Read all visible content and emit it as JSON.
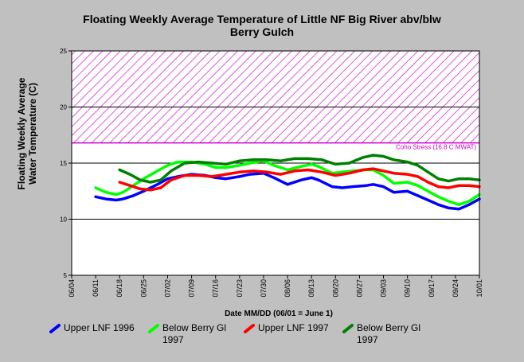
{
  "chart_data": {
    "type": "line",
    "title_line1": "Floating Weekly Average Temperature of Little NF Big River abv/blw",
    "title_line2": "Berry Gulch",
    "ylabel_line1": "Floating Weekly Average",
    "ylabel_line2": "Water Temperature (C)",
    "xlabel": "Date MM/DD (06/01 = June 1)",
    "ylim": [
      5,
      25
    ],
    "yticks": [
      "5",
      "10",
      "15",
      "20",
      "25"
    ],
    "xlim": [
      3,
      122
    ],
    "xticks": [
      {
        "label": "06/04",
        "day": 3
      },
      {
        "label": "06/11",
        "day": 10
      },
      {
        "label": "06/18",
        "day": 17
      },
      {
        "label": "06/25",
        "day": 24
      },
      {
        "label": "07/02",
        "day": 31
      },
      {
        "label": "07/09",
        "day": 38
      },
      {
        "label": "07/16",
        "day": 45
      },
      {
        "label": "07/23",
        "day": 52
      },
      {
        "label": "07/30",
        "day": 59
      },
      {
        "label": "08/06",
        "day": 66
      },
      {
        "label": "08/13",
        "day": 73
      },
      {
        "label": "08/20",
        "day": 80
      },
      {
        "label": "08/27",
        "day": 87
      },
      {
        "label": "09/03",
        "day": 94
      },
      {
        "label": "09/10",
        "day": 101
      },
      {
        "label": "09/17",
        "day": 108
      },
      {
        "label": "09/24",
        "day": 115
      },
      {
        "label": "10/01",
        "day": 122
      }
    ],
    "gridlines_y": [
      10,
      15,
      20
    ],
    "threshold": {
      "value": 16.8,
      "label": "Coho Stress (16.8 C MWAT)",
      "color": "#cc00cc"
    },
    "series": [
      {
        "name": "Upper LNF 1996",
        "color": "#0000ff",
        "x": [
          10,
          13,
          16,
          18,
          21,
          24,
          28,
          31,
          34,
          38,
          42,
          45,
          48,
          52,
          55,
          59,
          62,
          66,
          70,
          73,
          75,
          79,
          82,
          85,
          89,
          91,
          94,
          97,
          101,
          104,
          107,
          110,
          113,
          116,
          119,
          122
        ],
        "y": [
          12.0,
          11.8,
          11.7,
          11.8,
          12.1,
          12.5,
          13.1,
          13.6,
          13.8,
          14.0,
          13.9,
          13.7,
          13.6,
          13.8,
          14.0,
          14.1,
          13.7,
          13.1,
          13.5,
          13.7,
          13.5,
          12.9,
          12.8,
          12.9,
          13.0,
          13.1,
          12.9,
          12.4,
          12.5,
          12.1,
          11.7,
          11.3,
          11.0,
          10.9,
          11.3,
          11.8
        ]
      },
      {
        "name": "Below Berry Gl 1997",
        "color": "#00ff00",
        "x": [
          10,
          13,
          16,
          18,
          21,
          24,
          28,
          31,
          34,
          38,
          42,
          45,
          48,
          52,
          55,
          59,
          62,
          66,
          70,
          73,
          75,
          79,
          82,
          85,
          89,
          91,
          94,
          97,
          101,
          104,
          107,
          110,
          113,
          116,
          119,
          122
        ],
        "y": [
          12.8,
          12.4,
          12.2,
          12.4,
          13.0,
          13.6,
          14.3,
          14.8,
          15.1,
          15.1,
          14.9,
          14.6,
          14.6,
          14.8,
          15.0,
          15.2,
          14.8,
          14.4,
          14.7,
          14.9,
          14.7,
          14.1,
          14.2,
          14.3,
          14.4,
          14.4,
          13.9,
          13.2,
          13.3,
          13.0,
          12.5,
          12.0,
          11.6,
          11.3,
          11.6,
          12.2
        ]
      },
      {
        "name": "Upper LNF 1997",
        "color": "#ff0000",
        "x": [
          17,
          20,
          23,
          26,
          29,
          32,
          36,
          40,
          44,
          48,
          52,
          56,
          60,
          64,
          68,
          72,
          76,
          80,
          84,
          88,
          91,
          94,
          97,
          101,
          104,
          107,
          110,
          113,
          116,
          119,
          122
        ],
        "y": [
          13.3,
          13.0,
          12.7,
          12.6,
          12.8,
          13.5,
          13.9,
          13.9,
          13.8,
          14.0,
          14.2,
          14.3,
          14.2,
          14.0,
          14.3,
          14.4,
          14.2,
          13.9,
          14.1,
          14.4,
          14.5,
          14.3,
          14.1,
          14.0,
          13.8,
          13.3,
          12.9,
          12.8,
          13.0,
          13.0,
          12.9
        ]
      },
      {
        "name": "Below Berry Gl 1997",
        "color": "#008000",
        "x": [
          17,
          20,
          23,
          26,
          29,
          32,
          36,
          40,
          44,
          48,
          52,
          56,
          60,
          64,
          68,
          72,
          76,
          80,
          84,
          88,
          91,
          94,
          97,
          101,
          104,
          107,
          110,
          113,
          116,
          119,
          122
        ],
        "y": [
          14.4,
          14.0,
          13.5,
          13.3,
          13.5,
          14.3,
          15.0,
          15.1,
          15.0,
          14.9,
          15.2,
          15.3,
          15.3,
          15.2,
          15.4,
          15.4,
          15.3,
          14.9,
          15.0,
          15.5,
          15.7,
          15.6,
          15.3,
          15.1,
          14.8,
          14.2,
          13.6,
          13.4,
          13.6,
          13.6,
          13.5
        ]
      }
    ]
  }
}
